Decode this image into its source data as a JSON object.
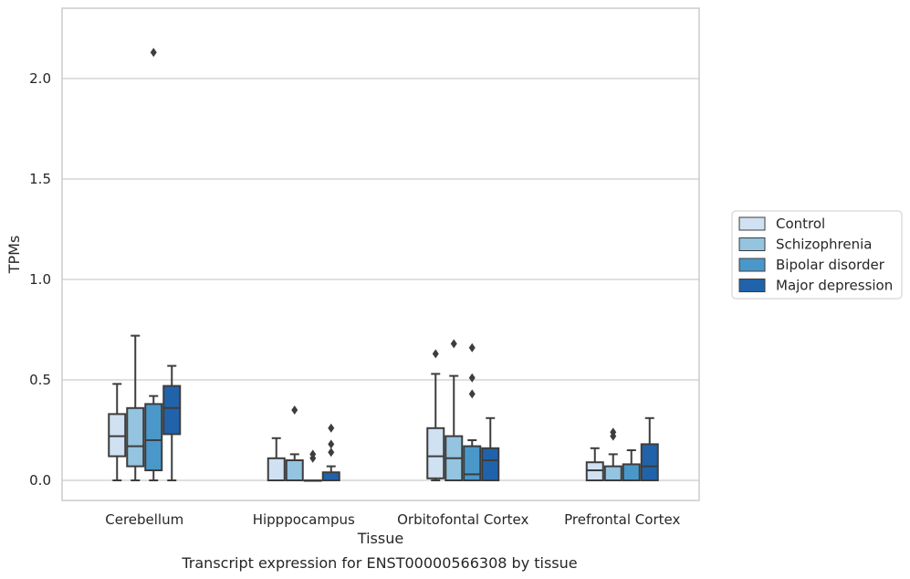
{
  "chart_data": {
    "type": "box",
    "title": "",
    "caption": "Transcript expression for ENST00000566308 by tissue",
    "xlabel": "Tissue",
    "ylabel": "TPMs",
    "ylim": [
      -0.1,
      2.35
    ],
    "yticks": [
      "0.0",
      "0.5",
      "1.0",
      "1.5",
      "2.0"
    ],
    "grid": "horizontal",
    "legend_position": "right",
    "categories": [
      "Cerebellum",
      "Hipppocampus",
      "Orbitofontal Cortex",
      "Prefrontal Cortex"
    ],
    "series": [
      {
        "name": "Control",
        "color": "#d0e1f2",
        "boxes": [
          {
            "min": 0.0,
            "q1": 0.12,
            "median": 0.22,
            "q3": 0.33,
            "max": 0.48,
            "outliers": []
          },
          {
            "min": 0.0,
            "q1": 0.0,
            "median": 0.0,
            "q3": 0.11,
            "max": 0.21,
            "outliers": []
          },
          {
            "min": 0.0,
            "q1": 0.01,
            "median": 0.12,
            "q3": 0.26,
            "max": 0.53,
            "outliers": [
              0.63
            ]
          },
          {
            "min": 0.0,
            "q1": 0.0,
            "median": 0.05,
            "q3": 0.09,
            "max": 0.16,
            "outliers": []
          }
        ]
      },
      {
        "name": "Schizophrenia",
        "color": "#94c4df",
        "boxes": [
          {
            "min": 0.0,
            "q1": 0.07,
            "median": 0.17,
            "q3": 0.36,
            "max": 0.72,
            "outliers": []
          },
          {
            "min": 0.0,
            "q1": 0.0,
            "median": 0.0,
            "q3": 0.1,
            "max": 0.13,
            "outliers": [
              0.35
            ]
          },
          {
            "min": 0.0,
            "q1": 0.0,
            "median": 0.11,
            "q3": 0.22,
            "max": 0.52,
            "outliers": [
              0.68
            ]
          },
          {
            "min": 0.0,
            "q1": 0.0,
            "median": 0.0,
            "q3": 0.07,
            "max": 0.13,
            "outliers": [
              0.22,
              0.24
            ]
          }
        ]
      },
      {
        "name": "Bipolar disorder",
        "color": "#4a98c9",
        "boxes": [
          {
            "min": 0.0,
            "q1": 0.05,
            "median": 0.2,
            "q3": 0.38,
            "max": 0.42,
            "outliers": [
              2.13
            ]
          },
          {
            "min": 0.0,
            "q1": 0.0,
            "median": 0.0,
            "q3": 0.0,
            "max": 0.0,
            "outliers": [
              0.11,
              0.13
            ]
          },
          {
            "min": 0.0,
            "q1": 0.0,
            "median": 0.03,
            "q3": 0.17,
            "max": 0.2,
            "outliers": [
              0.43,
              0.51,
              0.66
            ]
          },
          {
            "min": 0.0,
            "q1": 0.0,
            "median": 0.0,
            "q3": 0.08,
            "max": 0.15,
            "outliers": []
          }
        ]
      },
      {
        "name": "Major depression",
        "color": "#2163aa",
        "boxes": [
          {
            "min": 0.0,
            "q1": 0.23,
            "median": 0.36,
            "q3": 0.47,
            "max": 0.57,
            "outliers": []
          },
          {
            "min": 0.0,
            "q1": 0.0,
            "median": 0.0,
            "q3": 0.04,
            "max": 0.07,
            "outliers": [
              0.14,
              0.18,
              0.26
            ]
          },
          {
            "min": 0.0,
            "q1": 0.0,
            "median": 0.1,
            "q3": 0.16,
            "max": 0.31,
            "outliers": []
          },
          {
            "min": 0.0,
            "q1": 0.0,
            "median": 0.07,
            "q3": 0.18,
            "max": 0.31,
            "outliers": []
          }
        ]
      }
    ]
  }
}
